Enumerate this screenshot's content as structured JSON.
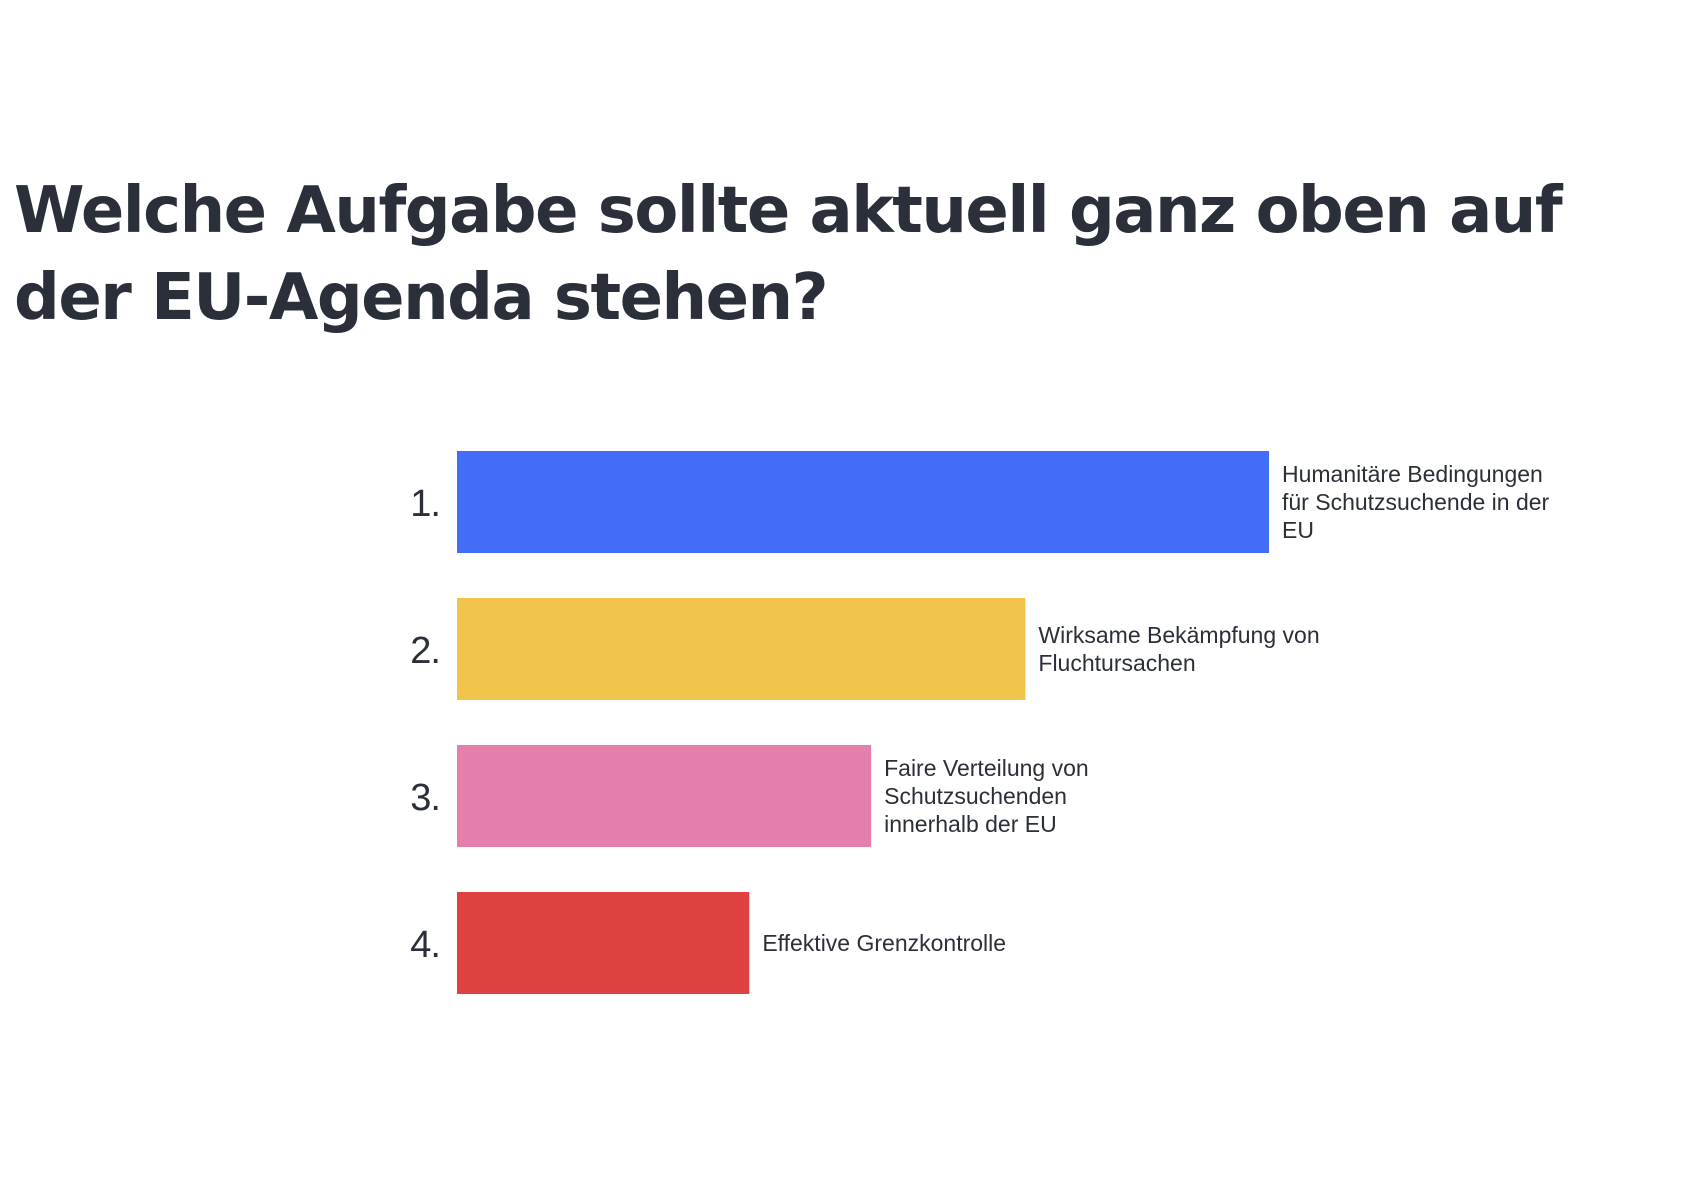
{
  "chart_data": {
    "type": "bar",
    "orientation": "horizontal",
    "title": "Welche Aufgabe sollte aktuell ganz oben auf der EU-Agenda stehen?",
    "categories": [
      "1.",
      "2.",
      "3.",
      "4."
    ],
    "labels": [
      [
        "Humanitäre Bedingungen",
        "für Schutzsuchende in der",
        "EU"
      ],
      [
        "Wirksame Bekämpfung von",
        "Fluchtursachen"
      ],
      [
        "Faire Verteilung von",
        "Schutzsuchenden",
        "innerhalb der EU"
      ],
      [
        "Effektive Grenzkontrolle"
      ]
    ],
    "values": [
      100,
      70,
      51,
      36
    ],
    "colors": [
      "#436df9",
      "#f0c44a",
      "#e47fab",
      "#de4140"
    ],
    "xlim": [
      0,
      100
    ],
    "grid": false,
    "legend": "none"
  }
}
